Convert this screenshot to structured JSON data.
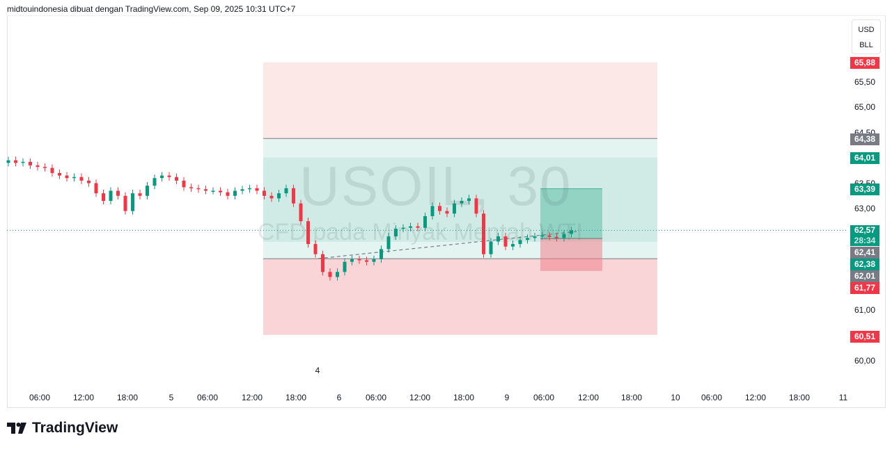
{
  "header": {
    "attribution": "midtouindonesia dibuat dengan TradingView.com, Sep 09, 2025 10:31 UTC+7"
  },
  "watermark": {
    "symbol": "USOIL, 30",
    "description": "CFD pada Minyak Mentah WTI"
  },
  "currency": {
    "line1": "USD",
    "line2": "BLL"
  },
  "brand": {
    "name": "TradingView"
  },
  "colors": {
    "up": "#089981",
    "down": "#f23645",
    "profit_zone": "#d0ebe5",
    "loss_zone": "#f9d5d8"
  },
  "chart_data": {
    "type": "candlestick",
    "interval": "30",
    "price_ticks": [
      "65,50",
      "65,00",
      "64,50",
      "63,50",
      "63,00",
      "61,00",
      "60,00"
    ],
    "price_labels": {
      "p6588": "65,88",
      "p6438": "64,38",
      "p6401": "64,01",
      "p6339": "63,39",
      "p6257": "62,57",
      "countdown": "28:34",
      "p6241": "62,41",
      "p6238": "62,38",
      "p6201": "62,01",
      "p6177": "61,77",
      "p6051": "60,51"
    },
    "time_ticks": [
      "06:00",
      "12:00",
      "18:00",
      "5",
      "06:00",
      "12:00",
      "18:00",
      "6",
      "06:00",
      "12:00",
      "18:00",
      "9",
      "06:00",
      "12:00",
      "18:00",
      "10",
      "06:00",
      "12:00",
      "18:00",
      "11"
    ],
    "extra_label": "4",
    "first_open": 63.9,
    "closes": [
      63.95,
      63.9,
      63.92,
      63.85,
      63.82,
      63.8,
      63.7,
      63.65,
      63.6,
      63.62,
      63.55,
      63.5,
      63.3,
      63.15,
      63.35,
      63.25,
      62.95,
      63.3,
      63.25,
      63.45,
      63.6,
      63.65,
      63.62,
      63.55,
      63.42,
      63.4,
      63.38,
      63.35,
      63.35,
      63.32,
      63.25,
      63.35,
      63.38,
      63.4,
      63.35,
      63.25,
      63.2,
      63.3,
      63.4,
      63.1,
      62.75,
      62.3,
      62.1,
      61.75,
      61.65,
      61.75,
      61.95,
      62.0,
      61.98,
      61.95,
      62.0,
      62.2,
      62.45,
      62.6,
      62.62,
      62.65,
      62.62,
      62.85,
      63.05,
      62.95,
      62.9,
      63.1,
      63.15,
      63.2,
      62.9,
      62.1,
      62.35,
      62.45,
      62.25,
      62.3,
      62.38,
      62.42,
      62.45,
      62.47,
      62.44,
      62.42,
      62.5,
      62.57
    ],
    "last_price": 62.57,
    "position_large": {
      "top": 65.88,
      "target": 64.38,
      "upper": 64.01,
      "entry_hi": 62.34,
      "entry": 62.01,
      "stop": 60.51
    },
    "position_small": {
      "target": 63.39,
      "entry": 62.41,
      "stop": 61.77
    }
  }
}
